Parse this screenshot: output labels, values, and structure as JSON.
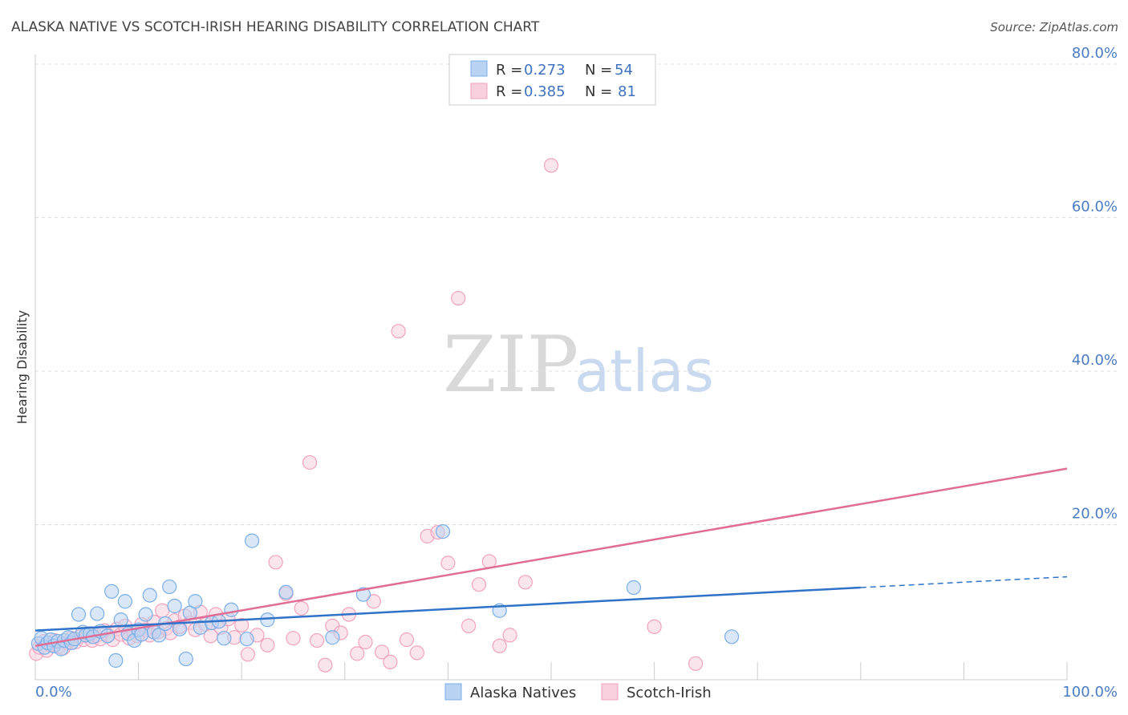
{
  "chart_data": {
    "type": "scatter",
    "title": "ALASKA NATIVE VS SCOTCH-IRISH HEARING DISABILITY CORRELATION CHART",
    "source": "Source: ZipAtlas.com",
    "watermark": {
      "zip": "ZIP",
      "atlas": "atlas"
    },
    "ylabel": "Hearing Disability",
    "xlim": [
      0,
      100
    ],
    "ylim": [
      0,
      80
    ],
    "y_ticks": [
      {
        "value": 80,
        "label": "80.0%"
      },
      {
        "value": 60,
        "label": "60.0%"
      },
      {
        "value": 40,
        "label": "40.0%"
      },
      {
        "value": 20,
        "label": "20.0%"
      }
    ],
    "x_tick_labels": {
      "left": "0.0%",
      "right": "100.0%"
    },
    "legend_box": [
      {
        "r_label": "R =",
        "r_value": "0.273",
        "n_label": "N =",
        "n_value": "54"
      },
      {
        "r_label": "R =",
        "r_value": "0.385",
        "n_label": "N =",
        "n_value": "81"
      }
    ],
    "series": [
      {
        "name": "Alaska Natives",
        "color": "#7aaee8",
        "fill": "#b9d3f3",
        "line_color": "#2f72c8",
        "trend": {
          "x0": 0,
          "y0": 6.2,
          "x1": 80,
          "y1": 11.8,
          "dash_to_x": 100,
          "dash_to_y": 13.2
        },
        "points": [
          [
            0.3,
            4.5
          ],
          [
            0.6,
            5.2
          ],
          [
            0.9,
            4.0
          ],
          [
            1.2,
            4.6
          ],
          [
            1.5,
            5.0
          ],
          [
            1.8,
            4.2
          ],
          [
            2.2,
            4.8
          ],
          [
            2.5,
            3.8
          ],
          [
            2.8,
            4.9
          ],
          [
            3.2,
            5.3
          ],
          [
            3.5,
            4.6
          ],
          [
            3.8,
            5.1
          ],
          [
            4.2,
            8.3
          ],
          [
            4.6,
            6.0
          ],
          [
            4.9,
            5.6
          ],
          [
            5.3,
            5.8
          ],
          [
            5.6,
            5.4
          ],
          [
            6.0,
            8.4
          ],
          [
            6.3,
            6.1
          ],
          [
            7.0,
            5.5
          ],
          [
            7.4,
            11.3
          ],
          [
            7.8,
            2.3
          ],
          [
            8.3,
            7.6
          ],
          [
            8.7,
            10.0
          ],
          [
            9.0,
            5.8
          ],
          [
            9.6,
            4.9
          ],
          [
            10.0,
            6.3
          ],
          [
            10.3,
            5.7
          ],
          [
            10.7,
            8.3
          ],
          [
            11.1,
            10.8
          ],
          [
            11.5,
            6.0
          ],
          [
            12.0,
            5.6
          ],
          [
            12.6,
            7.1
          ],
          [
            13.0,
            11.9
          ],
          [
            13.5,
            9.4
          ],
          [
            14.0,
            6.4
          ],
          [
            14.6,
            2.5
          ],
          [
            15.0,
            8.5
          ],
          [
            15.5,
            10.0
          ],
          [
            16.0,
            6.6
          ],
          [
            17.1,
            7.2
          ],
          [
            17.8,
            7.4
          ],
          [
            18.3,
            5.2
          ],
          [
            19.0,
            8.9
          ],
          [
            20.5,
            5.1
          ],
          [
            21.0,
            17.9
          ],
          [
            22.5,
            7.6
          ],
          [
            24.3,
            11.2
          ],
          [
            28.8,
            5.3
          ],
          [
            31.8,
            10.9
          ],
          [
            39.5,
            19.1
          ],
          [
            45.0,
            8.8
          ],
          [
            58.0,
            11.8
          ],
          [
            67.5,
            5.4
          ]
        ]
      },
      {
        "name": "Scotch-Irish",
        "color": "#f2a3bc",
        "fill": "#f8cfdc",
        "line_color": "#e06d95",
        "trend": {
          "x0": 0,
          "y0": 4.2,
          "x1": 100,
          "y1": 27.3
        },
        "points": [
          [
            0.1,
            3.2
          ],
          [
            0.4,
            4.0
          ],
          [
            0.8,
            4.8
          ],
          [
            1.1,
            3.6
          ],
          [
            1.5,
            4.3
          ],
          [
            1.9,
            4.9
          ],
          [
            2.3,
            4.1
          ],
          [
            2.7,
            3.9
          ],
          [
            3.1,
            4.6
          ],
          [
            3.5,
            5.2
          ],
          [
            3.9,
            4.7
          ],
          [
            4.3,
            5.4
          ],
          [
            4.7,
            5.0
          ],
          [
            5.1,
            5.8
          ],
          [
            5.5,
            4.9
          ],
          [
            5.9,
            5.5
          ],
          [
            6.3,
            5.1
          ],
          [
            6.7,
            6.2
          ],
          [
            7.1,
            5.6
          ],
          [
            7.5,
            5.0
          ],
          [
            7.9,
            6.4
          ],
          [
            8.3,
            5.7
          ],
          [
            8.7,
            6.8
          ],
          [
            9.1,
            5.2
          ],
          [
            9.5,
            6.1
          ],
          [
            9.9,
            5.5
          ],
          [
            10.3,
            7.0
          ],
          [
            10.7,
            6.3
          ],
          [
            11.1,
            5.6
          ],
          [
            11.5,
            7.3
          ],
          [
            11.9,
            6.0
          ],
          [
            12.3,
            8.8
          ],
          [
            12.7,
            6.5
          ],
          [
            13.1,
            5.9
          ],
          [
            13.5,
            7.5
          ],
          [
            14.0,
            6.7
          ],
          [
            14.5,
            8.1
          ],
          [
            15.0,
            7.2
          ],
          [
            15.5,
            6.3
          ],
          [
            16.0,
            8.6
          ],
          [
            16.5,
            7.0
          ],
          [
            17.0,
            5.5
          ],
          [
            17.5,
            8.3
          ],
          [
            18.0,
            6.6
          ],
          [
            18.7,
            7.7
          ],
          [
            19.3,
            5.3
          ],
          [
            20.0,
            6.9
          ],
          [
            20.6,
            3.1
          ],
          [
            21.5,
            5.6
          ],
          [
            22.5,
            4.3
          ],
          [
            23.3,
            15.1
          ],
          [
            24.3,
            11.0
          ],
          [
            25.0,
            5.2
          ],
          [
            25.8,
            9.1
          ],
          [
            26.6,
            28.1
          ],
          [
            27.3,
            4.9
          ],
          [
            28.1,
            1.7
          ],
          [
            28.8,
            6.8
          ],
          [
            29.6,
            5.9
          ],
          [
            30.4,
            8.3
          ],
          [
            31.2,
            3.2
          ],
          [
            32.0,
            4.7
          ],
          [
            32.8,
            10.0
          ],
          [
            33.6,
            3.4
          ],
          [
            34.4,
            2.1
          ],
          [
            35.2,
            45.2
          ],
          [
            36.0,
            5.0
          ],
          [
            37.0,
            3.3
          ],
          [
            38.0,
            18.5
          ],
          [
            39.0,
            19.0
          ],
          [
            40.0,
            15.0
          ],
          [
            41.0,
            49.5
          ],
          [
            42.0,
            6.8
          ],
          [
            43.0,
            12.2
          ],
          [
            44.0,
            15.2
          ],
          [
            45.0,
            4.2
          ],
          [
            46.0,
            5.6
          ],
          [
            47.5,
            12.5
          ],
          [
            50.0,
            66.8
          ],
          [
            60.0,
            6.7
          ],
          [
            64.0,
            1.9
          ]
        ]
      }
    ]
  }
}
